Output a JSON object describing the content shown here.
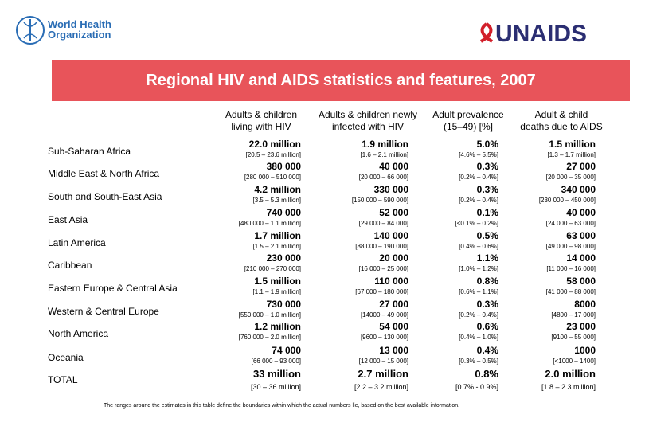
{
  "header": {
    "who_lines": [
      "World Health",
      "Organization"
    ],
    "unaids": "UNAIDS"
  },
  "title": "Regional HIV and AIDS statistics and features, 2007",
  "table": {
    "columns": [
      [
        "Adults & children",
        "living with HIV"
      ],
      [
        "Adults & children newly",
        "infected with HIV"
      ],
      [
        "Adult prevalence",
        "(15‒49) [%]"
      ],
      [
        "Adult & child",
        "deaths due to AIDS"
      ]
    ],
    "rows": [
      {
        "region": "Sub-Saharan Africa",
        "cells": [
          {
            "value": "22.0 million",
            "range": "[20.5 – 23.6 million]"
          },
          {
            "value": "1.9 million",
            "range": "[1.6 – 2.1 million]"
          },
          {
            "value": "5.0%",
            "range": "[4.6% – 5.5%]"
          },
          {
            "value": "1.5 million",
            "range": "[1.3 – 1.7 million]"
          }
        ]
      },
      {
        "region": "Middle East & North Africa",
        "cells": [
          {
            "value": "380 000",
            "range": "[280 000 – 510 000]"
          },
          {
            "value": "40 000",
            "range": "[20 000 – 66 000]"
          },
          {
            "value": "0.3%",
            "range": "[0.2% – 0.4%]"
          },
          {
            "value": "27 000",
            "range": "[20 000 – 35 000]"
          }
        ]
      },
      {
        "region": "South and South-East Asia",
        "cells": [
          {
            "value": "4.2 million",
            "range": "[3.5 – 5.3 million]"
          },
          {
            "value": "330 000",
            "range": "[150 000 – 590 000]"
          },
          {
            "value": "0.3%",
            "range": "[0.2% – 0.4%]"
          },
          {
            "value": "340 000",
            "range": "[230 000 – 450 000]"
          }
        ]
      },
      {
        "region": "East Asia",
        "cells": [
          {
            "value": "740 000",
            "range": "[480 000 – 1.1 million]"
          },
          {
            "value": "52 000",
            "range": "[29 000 – 84 000]"
          },
          {
            "value": "0.1%",
            "range": "[<0.1% – 0.2%]"
          },
          {
            "value": "40 000",
            "range": "[24 000 – 63 000]"
          }
        ]
      },
      {
        "region": "Latin America",
        "cells": [
          {
            "value": "1.7 million",
            "range": "[1.5 – 2.1 million]"
          },
          {
            "value": "140 000",
            "range": "[88 000 – 190 000]"
          },
          {
            "value": "0.5%",
            "range": "[0.4% – 0.6%]"
          },
          {
            "value": "63 000",
            "range": "[49 000 – 98 000]"
          }
        ]
      },
      {
        "region": "Caribbean",
        "cells": [
          {
            "value": "230 000",
            "range": "[210 000 – 270 000]"
          },
          {
            "value": "20 000",
            "range": "[16 000 – 25 000]"
          },
          {
            "value": "1.1%",
            "range": "[1.0% – 1.2%]"
          },
          {
            "value": "14 000",
            "range": "[11 000 – 16 000]"
          }
        ]
      },
      {
        "region": "Eastern Europe & Central Asia",
        "cells": [
          {
            "value": "1.5 million",
            "range": "[1.1 – 1.9 million]"
          },
          {
            "value": "110 000",
            "range": "[67 000 – 180 000]"
          },
          {
            "value": "0.8%",
            "range": "[0.6% – 1.1%]"
          },
          {
            "value": "58 000",
            "range": "[41 000 – 88 000]"
          }
        ]
      },
      {
        "region": "Western & Central Europe",
        "cells": [
          {
            "value": "730 000",
            "range": "[550 000 – 1.0 million]"
          },
          {
            "value": "27 000",
            "range": "[14000 – 49 000]"
          },
          {
            "value": "0.3%",
            "range": "[0.2% – 0.4%]"
          },
          {
            "value": "8000",
            "range": "[4800 – 17 000]"
          }
        ]
      },
      {
        "region": "North America",
        "cells": [
          {
            "value": "1.2 million",
            "range": "[760 000 – 2.0 million]"
          },
          {
            "value": "54 000",
            "range": "[9600 – 130 000]"
          },
          {
            "value": "0.6%",
            "range": "[0.4% – 1.0%]"
          },
          {
            "value": "23 000",
            "range": "[9100 – 55 000]"
          }
        ]
      },
      {
        "region": "Oceania",
        "cells": [
          {
            "value": "74 000",
            "range": "[66 000 – 93 000]"
          },
          {
            "value": "13 000",
            "range": "[12 000 – 15 000]"
          },
          {
            "value": "0.4%",
            "range": "[0.3% – 0.5%]"
          },
          {
            "value": "1000",
            "range": "[<1000 – 1400]"
          }
        ]
      },
      {
        "region": "TOTAL",
        "cells": [
          {
            "value": "33 million",
            "range": "[30 – 36 million]"
          },
          {
            "value": "2.7 million",
            "range": "[2.2 – 3.2 million]"
          },
          {
            "value": "0.8%",
            "range": "[0.7% - 0.9%]"
          },
          {
            "value": "2.0 million",
            "range": "[1.8 – 2.3 million]"
          }
        ]
      }
    ]
  },
  "footnote": "The ranges around the estimates in this table define the boundaries within which the actual numbers lie, based on the best available information."
}
